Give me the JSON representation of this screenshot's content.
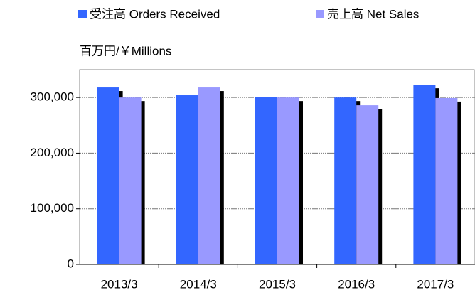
{
  "chart_data": {
    "type": "bar",
    "y_label": "百万円/￥Millions",
    "categories": [
      "2013/3",
      "2014/3",
      "2015/3",
      "2016/3",
      "2017/3"
    ],
    "series": [
      {
        "name": "受注高 Orders Received",
        "color": "#3366ff",
        "values": [
          318000,
          304000,
          301000,
          300000,
          323000
        ]
      },
      {
        "name": "売上高 Net Sales",
        "color": "#9999ff",
        "values": [
          300000,
          318000,
          300000,
          286000,
          299000
        ]
      }
    ],
    "ylim": [
      0,
      350000
    ],
    "yticks": [
      0,
      {
        "value": 100000,
        "label": "100,000"
      },
      {
        "value": 200000,
        "label": "200,000"
      },
      {
        "value": 300000,
        "label": "300,000"
      }
    ],
    "grid": true,
    "legend": "top"
  }
}
